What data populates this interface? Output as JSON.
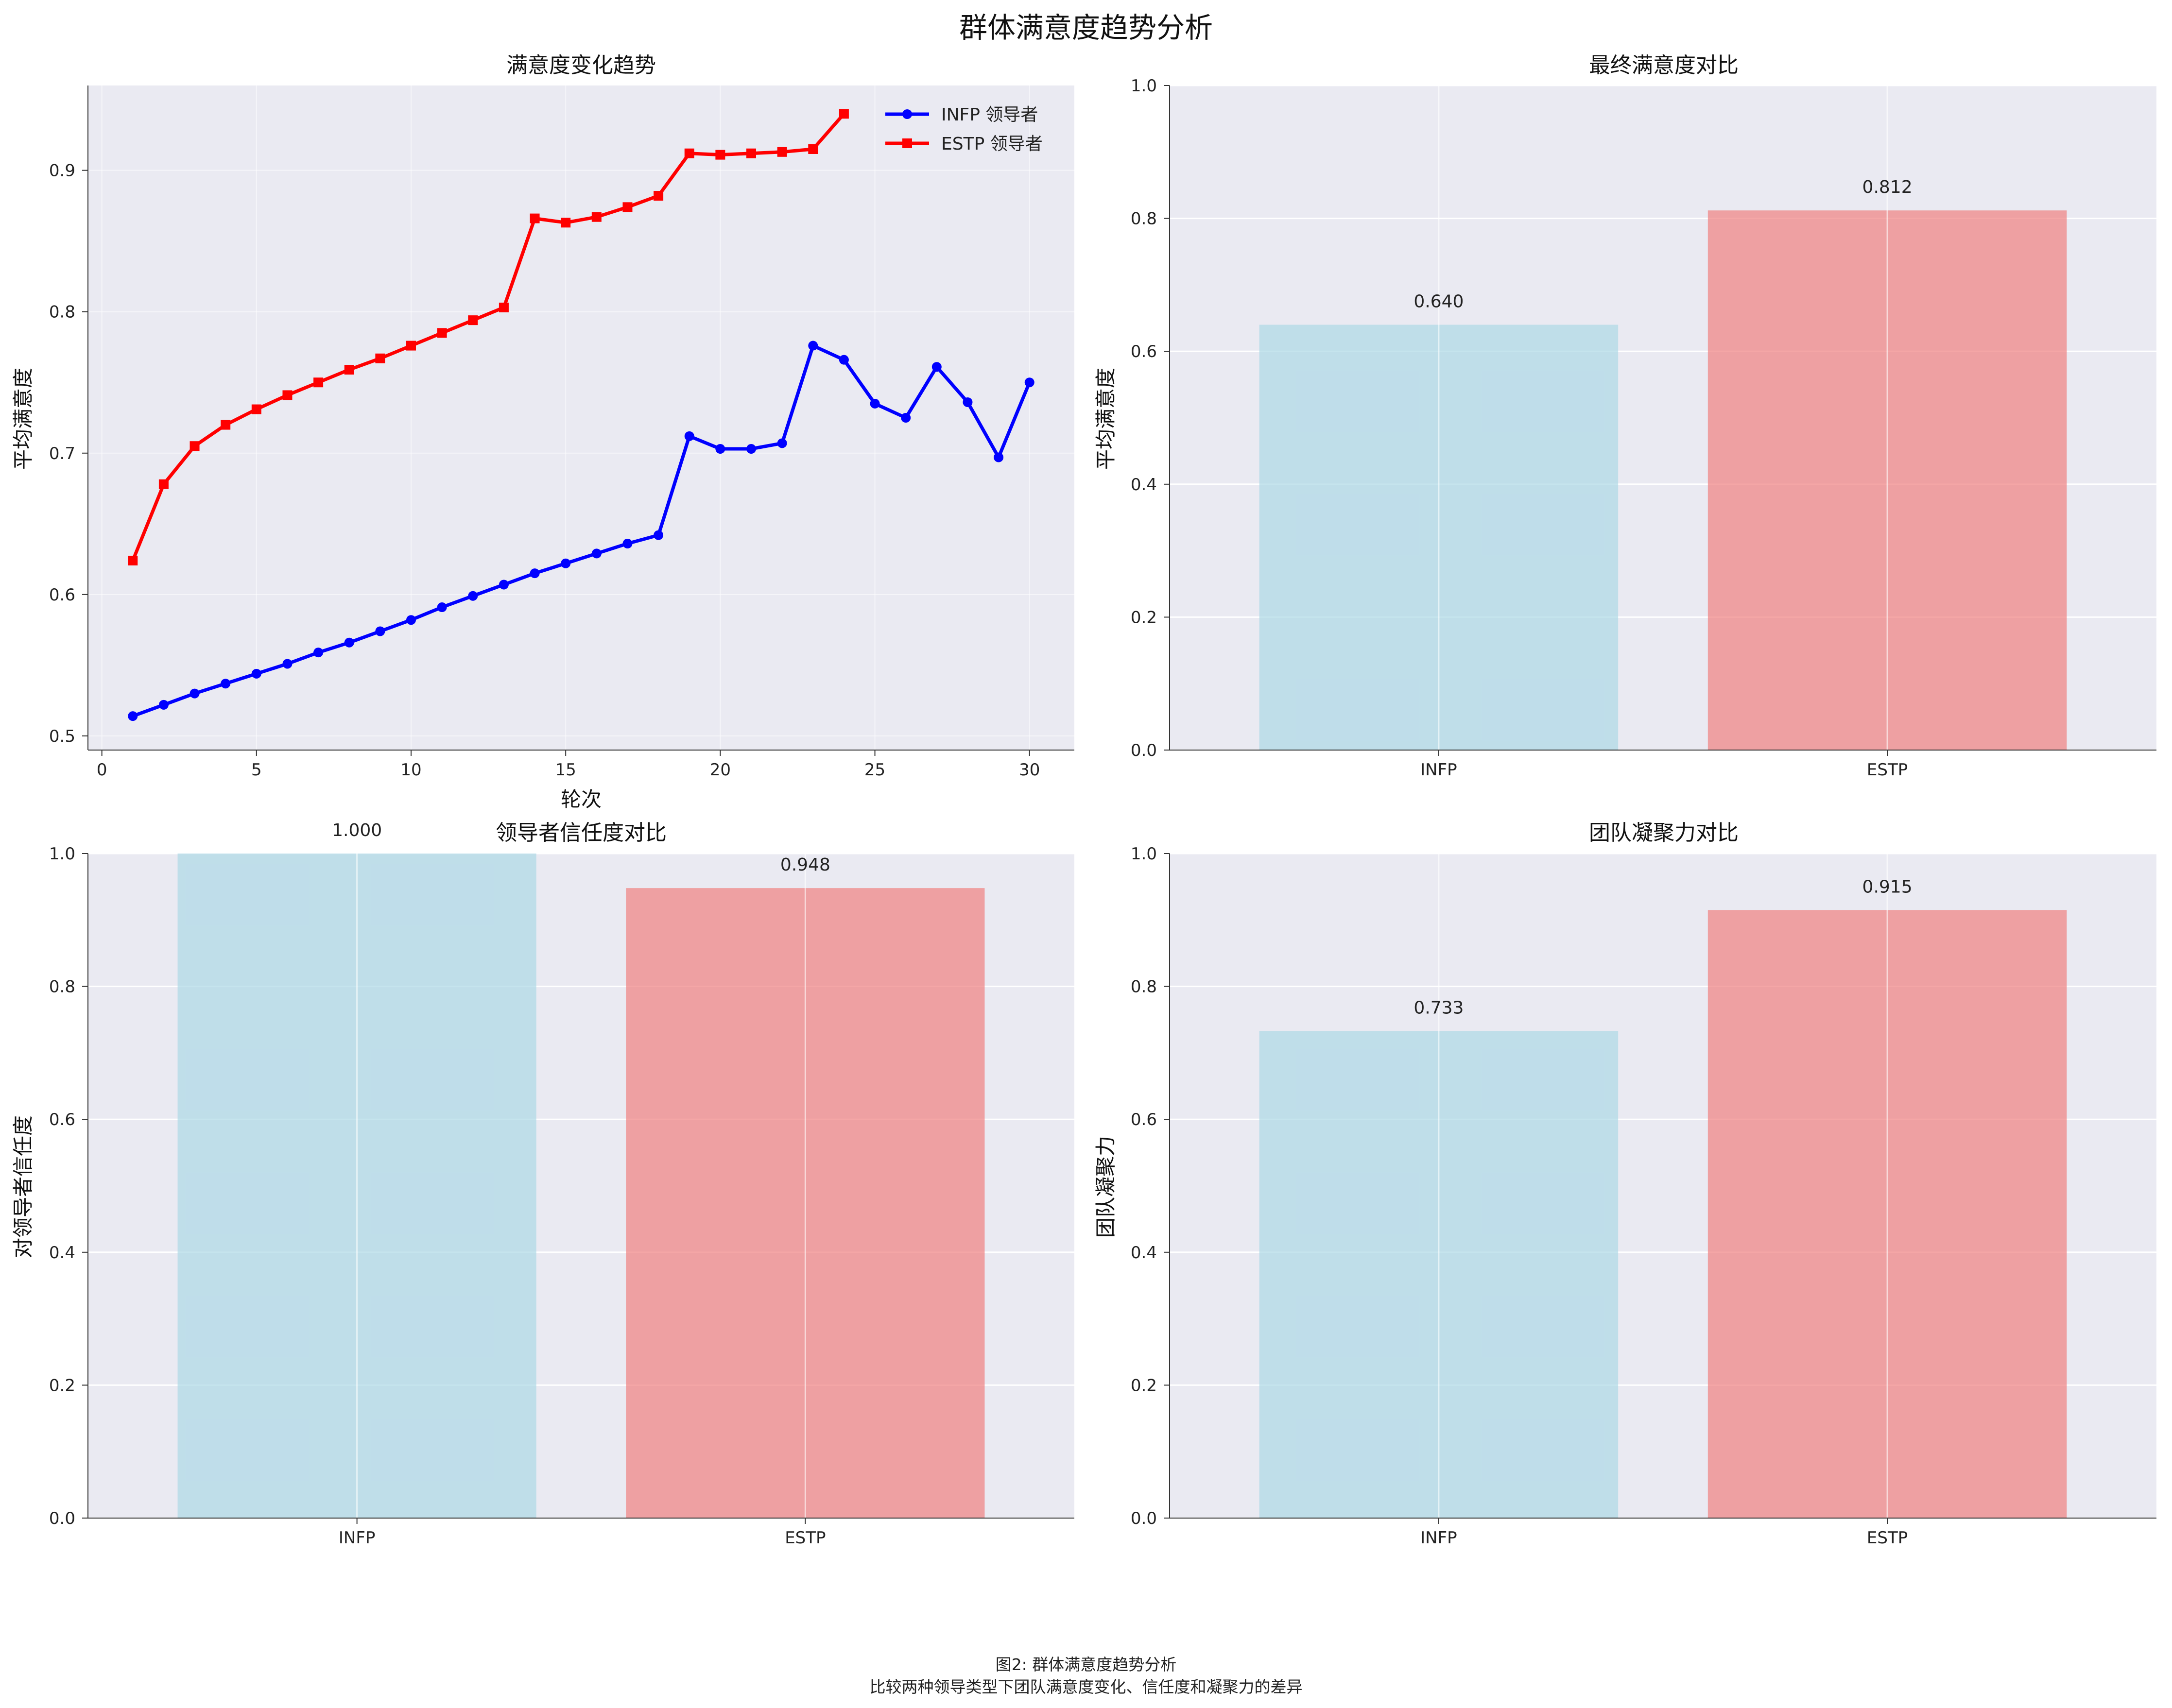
{
  "figure": {
    "suptitle": "群体满意度趋势分析",
    "caption_line1": "图2: 群体满意度趋势分析",
    "caption_line2": "比较两种领导类型下团队满意度变化、信任度和凝聚力的差异"
  },
  "colors": {
    "axes_bg": "#eaeaf2",
    "grid": "#ffffff",
    "infp_line": "#0000ff",
    "estp_line": "#ff0000",
    "infp_bar": "#add8e6",
    "estp_bar": "#f08080",
    "bar_alpha": 0.7
  },
  "chart_data": [
    {
      "type": "line",
      "title": "满意度变化趋势",
      "xlabel": "轮次",
      "ylabel": "平均满意度",
      "xlim": [
        -0.45,
        31.45
      ],
      "ylim": [
        0.49,
        0.96
      ],
      "xticks": [
        0,
        5,
        10,
        15,
        20,
        25,
        30
      ],
      "yticks": [
        0.5,
        0.6,
        0.7,
        0.8,
        0.9
      ],
      "grid": true,
      "legend": "top-right",
      "series": [
        {
          "name": "INFP 领导者",
          "marker": "circle",
          "color": "#0000ff",
          "x": [
            1,
            2,
            3,
            4,
            5,
            6,
            7,
            8,
            9,
            10,
            11,
            12,
            13,
            14,
            15,
            16,
            17,
            18,
            19,
            20,
            21,
            22,
            23,
            24,
            25,
            26,
            27,
            28,
            29,
            30
          ],
          "values": [
            0.514,
            0.522,
            0.53,
            0.537,
            0.544,
            0.551,
            0.559,
            0.566,
            0.574,
            0.582,
            0.591,
            0.599,
            0.607,
            0.615,
            0.622,
            0.629,
            0.636,
            0.642,
            0.712,
            0.703,
            0.703,
            0.707,
            0.776,
            0.766,
            0.735,
            0.725,
            0.761,
            0.736,
            0.697,
            0.75
          ]
        },
        {
          "name": "ESTP 领导者",
          "marker": "square",
          "color": "#ff0000",
          "x": [
            1,
            2,
            3,
            4,
            5,
            6,
            7,
            8,
            9,
            10,
            11,
            12,
            13,
            14,
            15,
            16,
            17,
            18,
            19,
            20,
            21,
            22,
            23,
            24
          ],
          "values": [
            0.624,
            0.678,
            0.705,
            0.72,
            0.731,
            0.741,
            0.75,
            0.759,
            0.767,
            0.776,
            0.785,
            0.794,
            0.803,
            0.866,
            0.863,
            0.867,
            0.874,
            0.882,
            0.912,
            0.911,
            0.912,
            0.913,
            0.915,
            0.94
          ]
        }
      ]
    },
    {
      "type": "bar",
      "title": "最终满意度对比",
      "xlabel": "",
      "ylabel": "平均满意度",
      "categories": [
        "INFP",
        "ESTP"
      ],
      "values": [
        0.64,
        0.812
      ],
      "value_labels": [
        "0.640",
        "0.812"
      ],
      "ylim": [
        0,
        1.0
      ],
      "yticks": [
        0.0,
        0.2,
        0.4,
        0.6,
        0.8,
        1.0
      ],
      "grid": true
    },
    {
      "type": "bar",
      "title": "领导者信任度对比",
      "xlabel": "",
      "ylabel": "对领导者信任度",
      "categories": [
        "INFP",
        "ESTP"
      ],
      "values": [
        1.0,
        0.948
      ],
      "value_labels": [
        "1.000",
        "0.948"
      ],
      "ylim": [
        0,
        1.0
      ],
      "yticks": [
        0.0,
        0.2,
        0.4,
        0.6,
        0.8,
        1.0
      ],
      "grid": true
    },
    {
      "type": "bar",
      "title": "团队凝聚力对比",
      "xlabel": "",
      "ylabel": "团队凝聚力",
      "categories": [
        "INFP",
        "ESTP"
      ],
      "values": [
        0.733,
        0.915
      ],
      "value_labels": [
        "0.733",
        "0.915"
      ],
      "ylim": [
        0,
        1.0
      ],
      "yticks": [
        0.0,
        0.2,
        0.4,
        0.6,
        0.8,
        1.0
      ],
      "grid": true
    }
  ]
}
